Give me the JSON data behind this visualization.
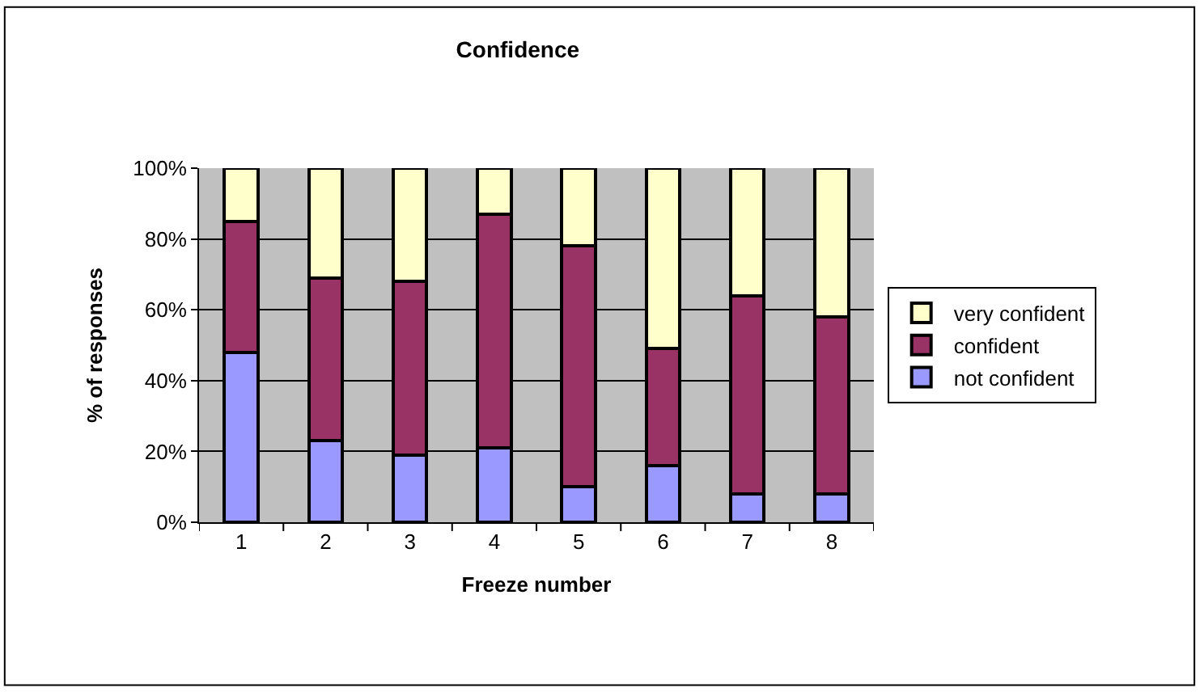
{
  "chart_data": {
    "type": "bar",
    "stacked": true,
    "title": "Confidence",
    "xlabel": "Freeze number",
    "ylabel": "% of responses",
    "categories": [
      "1",
      "2",
      "3",
      "4",
      "5",
      "6",
      "7",
      "8"
    ],
    "series": [
      {
        "name": "not confident",
        "color": "#9999ff",
        "values": [
          48,
          23,
          19,
          21,
          10,
          16,
          8,
          8
        ]
      },
      {
        "name": "confident",
        "color": "#993366",
        "values": [
          37,
          46,
          49,
          66,
          68,
          33,
          56,
          50
        ]
      },
      {
        "name": "very confident",
        "color": "#ffffcc",
        "values": [
          15,
          31,
          32,
          13,
          22,
          51,
          36,
          42
        ]
      }
    ],
    "ylim": [
      0,
      100
    ],
    "yticks": [
      {
        "value": 0,
        "label": "0%"
      },
      {
        "value": 20,
        "label": "20%"
      },
      {
        "value": 40,
        "label": "40%"
      },
      {
        "value": 60,
        "label": "60%"
      },
      {
        "value": 80,
        "label": "80%"
      },
      {
        "value": 100,
        "label": "100%"
      }
    ],
    "grid": "y",
    "legend": "right"
  }
}
